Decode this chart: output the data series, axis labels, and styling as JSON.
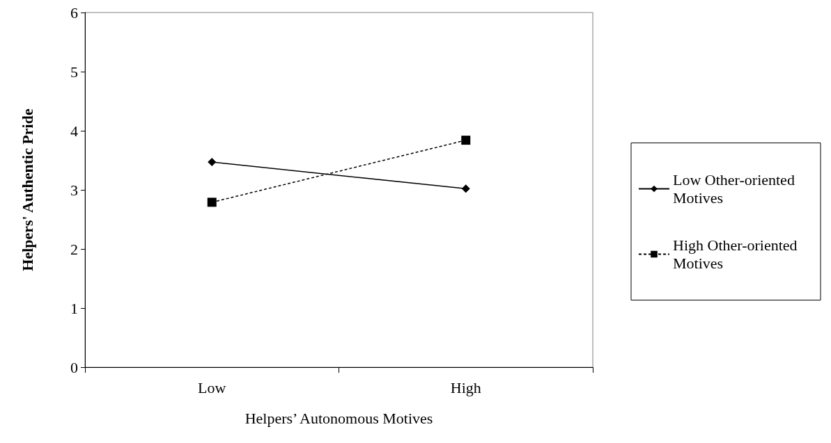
{
  "chart_data": {
    "type": "line",
    "xlabel": "Helpers’ Autonomous Motives",
    "ylabel": "Helpers' Authentic Pride",
    "categories": [
      "Low",
      "High"
    ],
    "ylim": [
      0,
      6
    ],
    "yticks": [
      0,
      1,
      2,
      3,
      4,
      5,
      6
    ],
    "grid": false,
    "legend": "right",
    "series": [
      {
        "name": "Low Other-oriented Motives",
        "color": "#000000",
        "values": [
          3.47,
          3.02
        ],
        "marker": "diamond",
        "line_style": "solid"
      },
      {
        "name": "High Other-oriented Motives",
        "color": "#000000",
        "values": [
          2.79,
          3.84
        ],
        "marker": "square",
        "line_style": "dashed"
      }
    ]
  }
}
